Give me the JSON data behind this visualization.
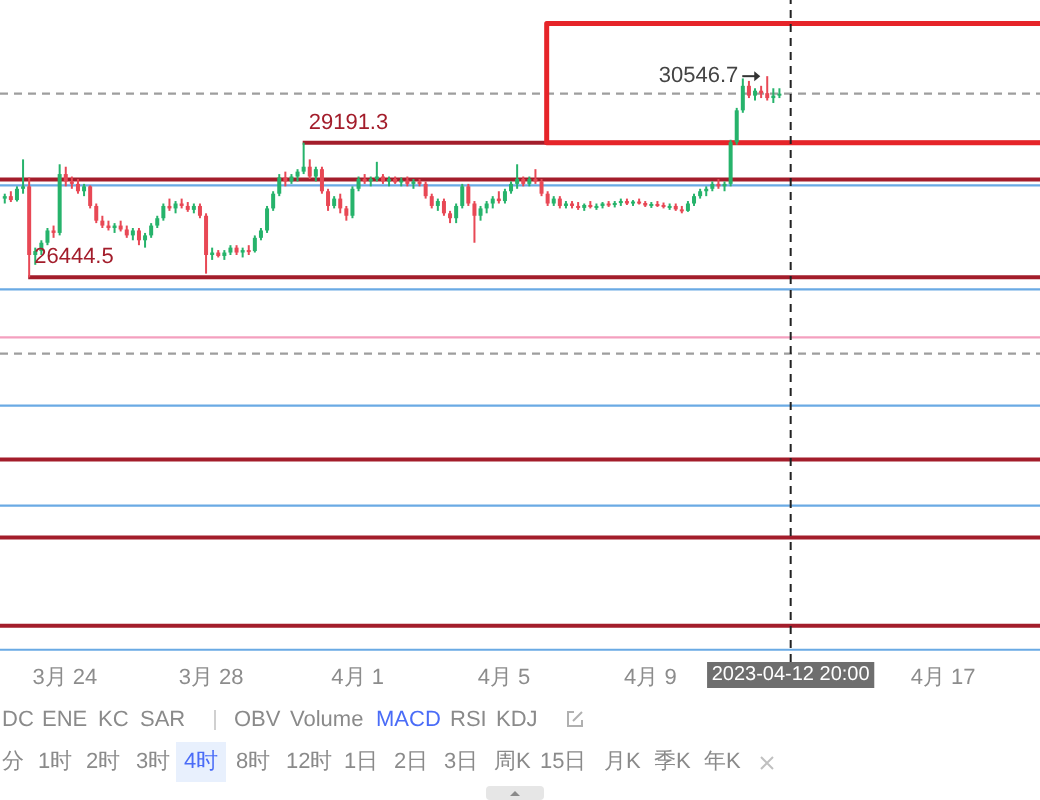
{
  "chart_data": {
    "type": "candlestick",
    "x": [
      "2023-03-22T08:00",
      "2023-03-22T12:00",
      "2023-03-22T16:00",
      "2023-03-22T20:00",
      "2023-03-23T00:00",
      "2023-03-23T04:00",
      "2023-03-23T08:00",
      "2023-03-23T12:00",
      "2023-03-23T16:00",
      "2023-03-23T20:00",
      "2023-03-24T00:00",
      "2023-03-24T04:00",
      "2023-03-24T08:00",
      "2023-03-24T12:00",
      "2023-03-24T16:00",
      "2023-03-24T20:00",
      "2023-03-25T00:00",
      "2023-03-25T04:00",
      "2023-03-25T08:00",
      "2023-03-25T12:00",
      "2023-03-25T16:00",
      "2023-03-25T20:00",
      "2023-03-26T00:00",
      "2023-03-26T04:00",
      "2023-03-26T08:00",
      "2023-03-26T12:00",
      "2023-03-26T16:00",
      "2023-03-26T20:00",
      "2023-03-27T00:00",
      "2023-03-27T04:00",
      "2023-03-27T08:00",
      "2023-03-27T12:00",
      "2023-03-27T16:00",
      "2023-03-27T20:00",
      "2023-03-28T00:00",
      "2023-03-28T04:00",
      "2023-03-28T08:00",
      "2023-03-28T12:00",
      "2023-03-28T16:00",
      "2023-03-28T20:00",
      "2023-03-29T00:00",
      "2023-03-29T04:00",
      "2023-03-29T08:00",
      "2023-03-29T12:00",
      "2023-03-29T16:00",
      "2023-03-29T20:00",
      "2023-03-30T00:00",
      "2023-03-30T04:00",
      "2023-03-30T08:00",
      "2023-03-30T12:00",
      "2023-03-30T16:00",
      "2023-03-30T20:00",
      "2023-03-31T00:00",
      "2023-03-31T04:00",
      "2023-03-31T08:00",
      "2023-03-31T12:00",
      "2023-03-31T16:00",
      "2023-03-31T20:00",
      "2023-04-01T00:00",
      "2023-04-01T04:00",
      "2023-04-01T08:00",
      "2023-04-01T12:00",
      "2023-04-01T16:00",
      "2023-04-01T20:00",
      "2023-04-02T00:00",
      "2023-04-02T04:00",
      "2023-04-02T08:00",
      "2023-04-02T12:00",
      "2023-04-02T16:00",
      "2023-04-02T20:00",
      "2023-04-03T00:00",
      "2023-04-03T04:00",
      "2023-04-03T08:00",
      "2023-04-03T12:00",
      "2023-04-03T16:00",
      "2023-04-03T20:00",
      "2023-04-04T00:00",
      "2023-04-04T04:00",
      "2023-04-04T08:00",
      "2023-04-04T12:00",
      "2023-04-04T16:00",
      "2023-04-04T20:00",
      "2023-04-05T00:00",
      "2023-04-05T04:00",
      "2023-04-05T08:00",
      "2023-04-05T12:00",
      "2023-04-05T16:00",
      "2023-04-05T20:00",
      "2023-04-06T00:00",
      "2023-04-06T04:00",
      "2023-04-06T08:00",
      "2023-04-06T12:00",
      "2023-04-06T16:00",
      "2023-04-06T20:00",
      "2023-04-07T00:00",
      "2023-04-07T04:00",
      "2023-04-07T08:00",
      "2023-04-07T12:00",
      "2023-04-07T16:00",
      "2023-04-07T20:00",
      "2023-04-08T00:00",
      "2023-04-08T04:00",
      "2023-04-08T08:00",
      "2023-04-08T12:00",
      "2023-04-08T16:00",
      "2023-04-08T20:00",
      "2023-04-09T00:00",
      "2023-04-09T04:00",
      "2023-04-09T08:00",
      "2023-04-09T12:00",
      "2023-04-09T16:00",
      "2023-04-09T20:00",
      "2023-04-10T00:00",
      "2023-04-10T04:00",
      "2023-04-10T08:00",
      "2023-04-10T12:00",
      "2023-04-10T16:00",
      "2023-04-10T20:00",
      "2023-04-11T00:00",
      "2023-04-11T04:00",
      "2023-04-11T08:00",
      "2023-04-11T12:00",
      "2023-04-11T16:00",
      "2023-04-11T20:00",
      "2023-04-12T00:00",
      "2023-04-12T04:00",
      "2023-04-12T08:00",
      "2023-04-12T12:00"
    ],
    "ohlc": [
      [
        28050,
        28150,
        27950,
        28100
      ],
      [
        28100,
        28200,
        27980,
        28020
      ],
      [
        28020,
        28300,
        27990,
        28250
      ],
      [
        28250,
        28850,
        28150,
        28300
      ],
      [
        28300,
        28480,
        26444.5,
        26900
      ],
      [
        26900,
        27050,
        26700,
        26980
      ],
      [
        26980,
        27200,
        26900,
        27150
      ],
      [
        27150,
        27450,
        27100,
        27400
      ],
      [
        27400,
        27500,
        27250,
        27350
      ],
      [
        27350,
        28750,
        27300,
        28550
      ],
      [
        28550,
        28700,
        28300,
        28400
      ],
      [
        28400,
        28500,
        28250,
        28350
      ],
      [
        28350,
        28450,
        28150,
        28200
      ],
      [
        28200,
        28350,
        28100,
        28300
      ],
      [
        28300,
        28320,
        27850,
        27900
      ],
      [
        27900,
        27950,
        27550,
        27600
      ],
      [
        27600,
        27700,
        27450,
        27500
      ],
      [
        27500,
        27600,
        27400,
        27450
      ],
      [
        27450,
        27550,
        27350,
        27500
      ],
      [
        27500,
        27600,
        27380,
        27420
      ],
      [
        27420,
        27500,
        27250,
        27300
      ],
      [
        27300,
        27450,
        27200,
        27400
      ],
      [
        27400,
        27450,
        27100,
        27200
      ],
      [
        27200,
        27350,
        27050,
        27300
      ],
      [
        27300,
        27550,
        27250,
        27500
      ],
      [
        27500,
        27700,
        27450,
        27650
      ],
      [
        27650,
        27950,
        27600,
        27900
      ],
      [
        27900,
        28050,
        27800,
        27850
      ],
      [
        27850,
        28000,
        27750,
        27950
      ],
      [
        27950,
        28050,
        27850,
        27900
      ],
      [
        27900,
        27980,
        27780,
        27820
      ],
      [
        27820,
        27950,
        27750,
        27900
      ],
      [
        27900,
        27950,
        27650,
        27700
      ],
      [
        27700,
        27750,
        26520,
        26900
      ],
      [
        26900,
        27050,
        26800,
        26950
      ],
      [
        26950,
        27000,
        26850,
        26880
      ],
      [
        26880,
        27000,
        26800,
        26950
      ],
      [
        26950,
        27100,
        26900,
        27050
      ],
      [
        27050,
        27100,
        26900,
        26950
      ],
      [
        26950,
        27050,
        26850,
        27000
      ],
      [
        27000,
        27100,
        26900,
        26980
      ],
      [
        26980,
        27300,
        26950,
        27250
      ],
      [
        27250,
        27450,
        27200,
        27400
      ],
      [
        27400,
        27900,
        27350,
        27850
      ],
      [
        27850,
        28200,
        27800,
        28150
      ],
      [
        28150,
        28550,
        28100,
        28480
      ],
      [
        28480,
        28600,
        28300,
        28400
      ],
      [
        28400,
        28550,
        28350,
        28500
      ],
      [
        28500,
        28650,
        28400,
        28600
      ],
      [
        28600,
        29191.3,
        28550,
        28700
      ],
      [
        28700,
        28850,
        28450,
        28500
      ],
      [
        28500,
        28700,
        28400,
        28650
      ],
      [
        28650,
        28700,
        28150,
        28200
      ],
      [
        28200,
        28250,
        27800,
        27900
      ],
      [
        27900,
        28100,
        27850,
        28050
      ],
      [
        28050,
        28150,
        27750,
        27850
      ],
      [
        27850,
        27900,
        27600,
        27700
      ],
      [
        27700,
        28300,
        27650,
        28250
      ],
      [
        28250,
        28500,
        28200,
        28450
      ],
      [
        28450,
        28550,
        28350,
        28400
      ],
      [
        28400,
        28500,
        28300,
        28450
      ],
      [
        28450,
        28800,
        28400,
        28500
      ],
      [
        28500,
        28550,
        28350,
        28400
      ],
      [
        28400,
        28500,
        28300,
        28450
      ],
      [
        28450,
        28500,
        28350,
        28380
      ],
      [
        28380,
        28480,
        28300,
        28420
      ],
      [
        28420,
        28500,
        28300,
        28350
      ],
      [
        28350,
        28450,
        28250,
        28400
      ],
      [
        28400,
        28450,
        28300,
        28350
      ],
      [
        28350,
        28400,
        28050,
        28100
      ],
      [
        28100,
        28150,
        27850,
        27900
      ],
      [
        27900,
        28050,
        27800,
        28000
      ],
      [
        28000,
        28050,
        27700,
        27750
      ],
      [
        27750,
        27800,
        27550,
        27650
      ],
      [
        27650,
        27950,
        27550,
        27900
      ],
      [
        27900,
        28350,
        27850,
        28300
      ],
      [
        28300,
        28350,
        27900,
        27950
      ],
      [
        27950,
        28000,
        27150,
        27700
      ],
      [
        27700,
        27900,
        27600,
        27850
      ],
      [
        27850,
        28000,
        27750,
        27950
      ],
      [
        27950,
        28100,
        27850,
        28050
      ],
      [
        28050,
        28200,
        27950,
        28000
      ],
      [
        28000,
        28250,
        27950,
        28200
      ],
      [
        28200,
        28400,
        28150,
        28350
      ],
      [
        28350,
        28750,
        28250,
        28450
      ],
      [
        28450,
        28500,
        28300,
        28350
      ],
      [
        28350,
        28500,
        28300,
        28450
      ],
      [
        28450,
        28650,
        28350,
        28400
      ],
      [
        28400,
        28450,
        28100,
        28150
      ],
      [
        28150,
        28200,
        27900,
        27950
      ],
      [
        27950,
        28100,
        27900,
        28050
      ],
      [
        28050,
        28100,
        27850,
        27900
      ],
      [
        27900,
        28000,
        27850,
        27950
      ],
      [
        27950,
        28000,
        27850,
        27900
      ],
      [
        27900,
        27980,
        27820,
        27860
      ],
      [
        27860,
        27950,
        27800,
        27920
      ],
      [
        27920,
        28000,
        27850,
        27880
      ],
      [
        27880,
        27950,
        27820,
        27900
      ],
      [
        27900,
        27980,
        27850,
        27950
      ],
      [
        27950,
        28000,
        27880,
        27920
      ],
      [
        27920,
        28000,
        27870,
        27960
      ],
      [
        27960,
        28050,
        27900,
        28000
      ],
      [
        28000,
        28050,
        27920,
        27950
      ],
      [
        27950,
        28020,
        27900,
        27990
      ],
      [
        27990,
        28050,
        27930,
        27960
      ],
      [
        27960,
        28000,
        27880,
        27910
      ],
      [
        27910,
        27980,
        27860,
        27940
      ],
      [
        27940,
        28000,
        27880,
        27920
      ],
      [
        27920,
        27970,
        27850,
        27880
      ],
      [
        27880,
        27950,
        27820,
        27900
      ],
      [
        27900,
        27950,
        27800,
        27830
      ],
      [
        27830,
        27900,
        27750,
        27800
      ],
      [
        27800,
        28000,
        27780,
        27950
      ],
      [
        27950,
        28150,
        27900,
        28100
      ],
      [
        28100,
        28250,
        28050,
        28200
      ],
      [
        28200,
        28300,
        28100,
        28250
      ],
      [
        28250,
        28400,
        28200,
        28350
      ],
      [
        28350,
        28450,
        28250,
        28300
      ],
      [
        28300,
        28400,
        28200,
        28350
      ],
      [
        28350,
        29250,
        28300,
        29200
      ],
      [
        29200,
        29900,
        29150,
        29850
      ],
      [
        29850,
        30500,
        29800,
        30350
      ],
      [
        30350,
        30450,
        30100,
        30150
      ],
      [
        30150,
        30300,
        30050,
        30250
      ],
      [
        30250,
        30350,
        30100,
        30200
      ],
      [
        30200,
        30546.7,
        30050,
        30100
      ],
      [
        30100,
        30300,
        30000,
        30150
      ],
      [
        30150,
        30300,
        30100,
        30190
      ]
    ],
    "colors": [
      "#26b36b",
      "#e84855",
      "#26b36b",
      "#26b36b",
      "#e84855",
      "#26b36b",
      "#26b36b",
      "#26b36b",
      "#e84855",
      "#26b36b",
      "#e84855",
      "#e84855",
      "#e84855",
      "#26b36b",
      "#e84855",
      "#e84855",
      "#e84855",
      "#e84855",
      "#26b36b",
      "#e84855",
      "#e84855",
      "#26b36b",
      "#e84855",
      "#26b36b",
      "#26b36b",
      "#26b36b",
      "#26b36b",
      "#e84855",
      "#26b36b",
      "#e84855",
      "#e84855",
      "#26b36b",
      "#e84855",
      "#e84855",
      "#26b36b",
      "#e84855",
      "#26b36b",
      "#26b36b",
      "#e84855",
      "#26b36b",
      "#e84855",
      "#26b36b",
      "#26b36b",
      "#26b36b",
      "#26b36b",
      "#26b36b",
      "#e84855",
      "#26b36b",
      "#26b36b",
      "#26b36b",
      "#e84855",
      "#26b36b",
      "#e84855",
      "#e84855",
      "#26b36b",
      "#e84855",
      "#e84855",
      "#26b36b",
      "#26b36b",
      "#e84855",
      "#26b36b",
      "#26b36b",
      "#e84855",
      "#26b36b",
      "#e84855",
      "#26b36b",
      "#e84855",
      "#26b36b",
      "#e84855",
      "#e84855",
      "#e84855",
      "#26b36b",
      "#e84855",
      "#e84855",
      "#26b36b",
      "#26b36b",
      "#e84855",
      "#e84855",
      "#26b36b",
      "#26b36b",
      "#26b36b",
      "#e84855",
      "#26b36b",
      "#26b36b",
      "#26b36b",
      "#e84855",
      "#26b36b",
      "#e84855",
      "#e84855",
      "#e84855",
      "#26b36b",
      "#e84855",
      "#26b36b",
      "#e84855",
      "#e84855",
      "#26b36b",
      "#e84855",
      "#26b36b",
      "#26b36b",
      "#e84855",
      "#26b36b",
      "#26b36b",
      "#e84855",
      "#26b36b",
      "#e84855",
      "#e84855",
      "#26b36b",
      "#e84855",
      "#e84855",
      "#26b36b",
      "#e84855",
      "#e84855",
      "#26b36b",
      "#26b36b",
      "#26b36b",
      "#26b36b",
      "#26b36b",
      "#e84855",
      "#26b36b",
      "#26b36b",
      "#26b36b",
      "#26b36b",
      "#e84855",
      "#26b36b",
      "#e84855",
      "#e84855",
      "#26b36b",
      "#26b36b"
    ],
    "series": [
      {
        "type": "line",
        "x": [
          "2023-04-19T15:30",
          "2023-04-06T04:00",
          "2023-04-06T04:00",
          "2023-04-19T15:30"
        ],
        "values": [
          31620,
          31620,
          29190,
          29190
        ],
        "color": "#e62429"
      }
    ],
    "xlim": [
      "2023-03-22T05:30",
      "2023-04-19T15:30"
    ],
    "xticks": [
      {
        "value": "2023-03-24",
        "label": "3月 24"
      },
      {
        "value": "2023-03-28",
        "label": "3月 28"
      },
      {
        "value": "2023-04-01",
        "label": "4月 1"
      },
      {
        "value": "2023-04-05",
        "label": "4月 5"
      },
      {
        "value": "2023-04-09",
        "label": "4月 9"
      },
      {
        "value": "2023-04-17",
        "label": "4月 17"
      }
    ],
    "ylim": [
      18600,
      32100
    ],
    "tick_labels": "x",
    "ref_lines": [
      {
        "axis": "y",
        "value": 30190,
        "color": "#9e9e9e",
        "line_style": "dashed"
      },
      {
        "axis": "y",
        "value": 29191.3,
        "label": "29191.3",
        "color": "#a31d2b"
      },
      {
        "axis": "y",
        "value": 28440,
        "color": "#a31d2b"
      },
      {
        "axis": "y",
        "value": 28320,
        "color": "#6aaae4"
      },
      {
        "axis": "y",
        "value": 26444.5,
        "label": "26444.5",
        "color": "#a31d2b"
      },
      {
        "axis": "y",
        "value": 26200,
        "color": "#6aaae4"
      },
      {
        "axis": "y",
        "value": 25220,
        "color": "#f4a0bf"
      },
      {
        "axis": "y",
        "value": 24890,
        "color": "#9e9e9e",
        "line_style": "dashed"
      },
      {
        "axis": "y",
        "value": 23830,
        "color": "#6aaae4"
      },
      {
        "axis": "y",
        "value": 22730,
        "color": "#a31d2b"
      },
      {
        "axis": "y",
        "value": 21790,
        "color": "#6aaae4"
      },
      {
        "axis": "y",
        "value": 21140,
        "color": "#a31d2b"
      },
      {
        "axis": "y",
        "value": 19340,
        "color": "#a31d2b"
      },
      {
        "axis": "y",
        "value": 18850,
        "color": "#6aaae4"
      },
      {
        "axis": "x",
        "value": "2023-04-12T20:00",
        "label": "2023-04-12 20:00",
        "color": "#222222",
        "line_style": "dashed"
      }
    ],
    "annotations": [
      {
        "text": "30546.7",
        "x": "2023-04-12T04:00",
        "y": 30546.7
      },
      "DC",
      "ENE",
      "KC",
      "SAR",
      "OBV",
      "Volume",
      "MACD",
      "RSI",
      "KDJ",
      "分",
      "1时",
      "2时",
      "3时",
      "4时",
      "8时",
      "12时",
      "1日",
      "2日",
      "3日",
      "周K",
      "15日",
      "月K",
      "季K",
      "年K"
    ]
  }
}
